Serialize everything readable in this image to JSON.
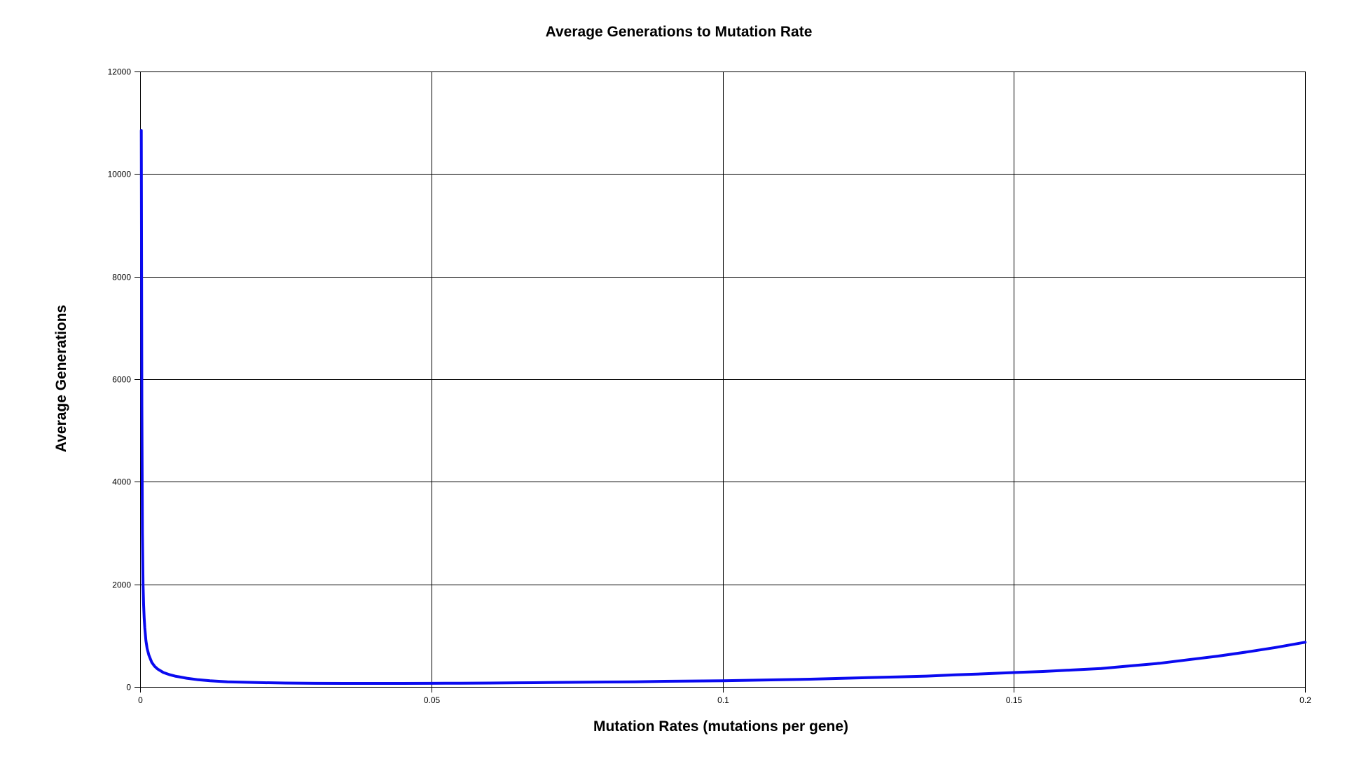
{
  "chart_data": {
    "type": "line",
    "title": "Average Generations to Mutation Rate",
    "xlabel": "Mutation Rates (mutations per gene)",
    "ylabel": "Average Generations",
    "xlim": [
      0,
      0.2
    ],
    "ylim": [
      0,
      12000
    ],
    "x_ticks": [
      0,
      0.05,
      0.1,
      0.15,
      0.2
    ],
    "x_tick_labels": [
      "0",
      "0.05",
      "0.1",
      "0.15",
      "0.2"
    ],
    "y_ticks": [
      0,
      2000,
      4000,
      6000,
      8000,
      10000,
      12000
    ],
    "y_tick_labels": [
      "0",
      "2000",
      "4000",
      "6000",
      "8000",
      "10000",
      "12000"
    ],
    "grid": true,
    "legend": "none",
    "colors": {
      "series": "#0a0af0"
    },
    "series": [
      {
        "x": [
          0.0002,
          0.0003,
          0.0004,
          0.0005,
          0.0006,
          0.0007,
          0.0008,
          0.001,
          0.0012,
          0.0015,
          0.002,
          0.0025,
          0.003,
          0.004,
          0.005,
          0.006,
          0.008,
          0.01,
          0.012,
          0.015,
          0.02,
          0.025,
          0.03,
          0.035,
          0.04,
          0.045,
          0.05,
          0.055,
          0.06,
          0.065,
          0.07,
          0.075,
          0.08,
          0.085,
          0.09,
          0.095,
          0.1,
          0.105,
          0.11,
          0.115,
          0.12,
          0.125,
          0.13,
          0.135,
          0.14,
          0.145,
          0.15,
          0.155,
          0.16,
          0.165,
          0.17,
          0.175,
          0.18,
          0.185,
          0.19,
          0.195,
          0.2
        ],
        "y": [
          10850,
          5500,
          3000,
          2000,
          1600,
          1350,
          1150,
          900,
          750,
          620,
          480,
          400,
          350,
          280,
          240,
          210,
          170,
          140,
          120,
          100,
          85,
          75,
          70,
          68,
          68,
          68,
          70,
          72,
          75,
          80,
          85,
          90,
          95,
          100,
          110,
          115,
          120,
          130,
          140,
          150,
          165,
          180,
          195,
          210,
          235,
          255,
          280,
          300,
          330,
          360,
          410,
          460,
          530,
          600,
          680,
          770,
          870
        ]
      }
    ]
  }
}
